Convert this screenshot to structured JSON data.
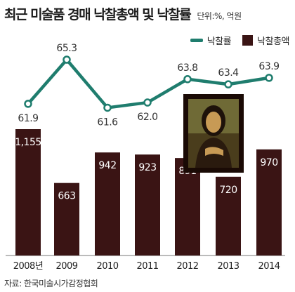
{
  "header": {
    "title": "최근 미술품 경매 낙찰총액 및 낙찰률",
    "unit": "단위:%, 억원"
  },
  "legend": {
    "line_label": "낙찰률",
    "bar_label": "낙찰총액",
    "placement": "top-right"
  },
  "source": "자료: 한국미술시가감정협회",
  "colors": {
    "line": "#1f7d6e",
    "bar": "#3a1414",
    "bar_label_text": "#ffffff",
    "frame": "#1a0a05"
  },
  "decoration": {
    "image": "mona-lisa-painting"
  },
  "chart_data": {
    "type": "bar",
    "categories": [
      "2008년",
      "2009",
      "2010",
      "2011",
      "2012",
      "2013",
      "2014"
    ],
    "series": [
      {
        "name": "낙찰총액",
        "type": "bar",
        "values": [
          1155,
          663,
          942,
          923,
          891,
          720,
          970
        ],
        "labels": [
          "1,155",
          "663",
          "942",
          "923",
          "891",
          "720",
          "970"
        ]
      },
      {
        "name": "낙찰률",
        "type": "line",
        "values": [
          61.9,
          65.3,
          61.6,
          62.0,
          63.8,
          63.4,
          63.9
        ],
        "labels": [
          "61.9",
          "65.3",
          "61.6",
          "62.0",
          "63.8",
          "63.4",
          "63.9"
        ]
      }
    ],
    "title": "최근 미술품 경매 낙찰총액 및 낙찰률",
    "grid": false
  }
}
